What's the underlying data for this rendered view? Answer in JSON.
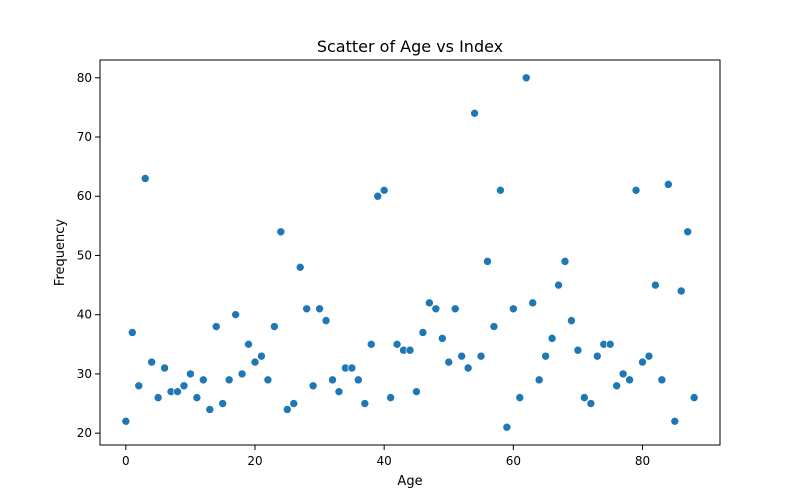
{
  "chart_data": {
    "type": "scatter",
    "title": "Scatter of Age vs Index",
    "xlabel": "Age",
    "ylabel": "Frequency",
    "xlim": [
      -4,
      92
    ],
    "ylim": [
      18,
      83
    ],
    "xticks": [
      0,
      20,
      40,
      60,
      80
    ],
    "yticks": [
      20,
      30,
      40,
      50,
      60,
      70,
      80
    ],
    "grid": false,
    "marker_color": "#1f77b4",
    "x": [
      0,
      1,
      2,
      3,
      4,
      5,
      6,
      7,
      8,
      9,
      10,
      11,
      12,
      13,
      14,
      15,
      16,
      17,
      18,
      19,
      20,
      21,
      22,
      23,
      24,
      25,
      26,
      27,
      28,
      29,
      30,
      31,
      32,
      33,
      34,
      35,
      36,
      37,
      38,
      39,
      40,
      41,
      42,
      43,
      44,
      45,
      46,
      47,
      48,
      49,
      50,
      51,
      52,
      53,
      54,
      55,
      56,
      57,
      58,
      59,
      60,
      61,
      62,
      63,
      64,
      65,
      66,
      67,
      68,
      69,
      70,
      71,
      72,
      73,
      74,
      75,
      76,
      77,
      78,
      79,
      80,
      81,
      82,
      83,
      84,
      85,
      86,
      87,
      88
    ],
    "y": [
      22,
      37,
      28,
      63,
      32,
      26,
      31,
      27,
      27,
      28,
      30,
      26,
      29,
      24,
      38,
      25,
      29,
      40,
      30,
      35,
      32,
      33,
      29,
      38,
      54,
      24,
      25,
      48,
      41,
      28,
      41,
      39,
      29,
      27,
      31,
      31,
      29,
      25,
      35,
      60,
      61,
      26,
      35,
      34,
      34,
      27,
      37,
      42,
      41,
      36,
      32,
      41,
      33,
      31,
      74,
      33,
      49,
      38,
      61,
      21,
      41,
      26,
      80,
      42,
      29,
      33,
      36,
      45,
      49,
      39,
      34,
      26,
      25,
      33,
      35,
      35,
      28,
      30,
      29,
      61,
      32,
      33,
      45,
      29,
      62,
      22,
      44,
      54,
      26
    ]
  }
}
